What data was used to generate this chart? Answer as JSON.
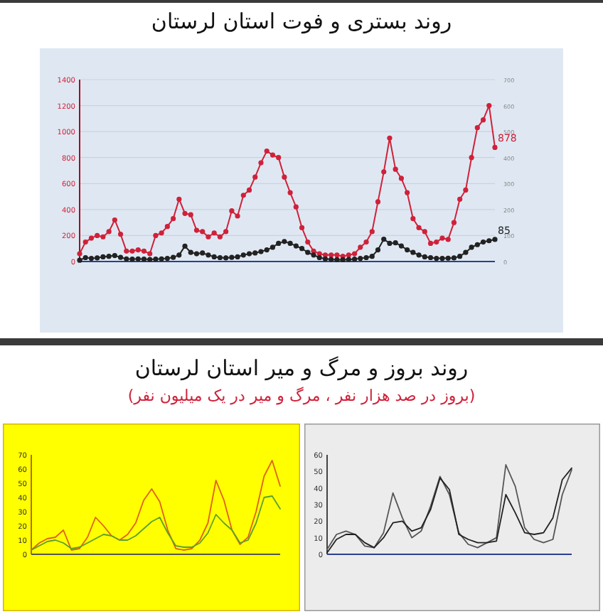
{
  "chart_data": [
    {
      "type": "line",
      "title": "روند بستری و فوت استان لرستان",
      "categories": [
        null,
        null,
        null,
        null,
        null,
        null,
        null,
        null,
        null,
        null,
        null,
        null,
        null,
        null,
        null,
        null,
        null,
        null,
        null,
        null,
        null,
        null,
        null,
        null,
        null,
        null,
        null,
        null,
        null,
        null,
        null,
        null,
        null,
        null,
        null,
        null,
        null,
        null,
        null,
        null,
        null,
        null,
        null,
        null,
        null,
        null,
        null,
        null,
        null,
        null,
        null,
        null,
        null,
        null,
        null,
        null,
        null,
        null,
        null,
        null,
        null,
        null,
        null,
        null,
        null,
        null,
        null,
        null,
        null,
        null,
        null,
        null
      ],
      "ylim": [
        0,
        1400
      ],
      "yticks": [
        0,
        200,
        400,
        600,
        800,
        1000,
        1200,
        1400
      ],
      "y2lim": [
        0,
        700
      ],
      "y2ticks": [
        0,
        100,
        200,
        300,
        400,
        500,
        600,
        700
      ],
      "grid": "y",
      "marker": "circle",
      "series": [
        {
          "color": "#d0213a",
          "values": [
            60,
            150,
            180,
            200,
            190,
            230,
            320,
            210,
            80,
            80,
            90,
            80,
            60,
            200,
            220,
            270,
            330,
            480,
            370,
            360,
            240,
            230,
            190,
            220,
            190,
            230,
            390,
            350,
            510,
            550,
            650,
            760,
            850,
            820,
            800,
            650,
            530,
            420,
            260,
            150,
            80,
            60,
            50,
            50,
            50,
            40,
            50,
            60,
            110,
            150,
            230,
            460,
            690,
            950,
            710,
            640,
            530,
            330,
            260,
            230,
            140,
            150,
            180,
            170,
            300,
            480,
            550,
            800,
            1030,
            1090,
            1200,
            878
          ],
          "value_labels": [
            null,
            null,
            null,
            null,
            null,
            null,
            null,
            null,
            null,
            null,
            null,
            null,
            null,
            null,
            null,
            null,
            null,
            null,
            null,
            null,
            null,
            null,
            null,
            null,
            null,
            null,
            null,
            null,
            null,
            null,
            null,
            null,
            null,
            null,
            null,
            null,
            null,
            null,
            null,
            null,
            null,
            null,
            null,
            null,
            null,
            null,
            null,
            null,
            null,
            null,
            null,
            null,
            null,
            null,
            null,
            null,
            null,
            null,
            null,
            null,
            null,
            null,
            null,
            null,
            null,
            null,
            null,
            null,
            null,
            null,
            null,
            "878"
          ]
        },
        {
          "color": "#222222",
          "axis": "y2",
          "values": [
            5,
            15,
            12,
            14,
            18,
            20,
            23,
            16,
            10,
            9,
            10,
            9,
            8,
            9,
            10,
            12,
            16,
            25,
            59,
            35,
            30,
            33,
            25,
            18,
            15,
            14,
            16,
            18,
            25,
            30,
            33,
            38,
            45,
            55,
            70,
            77,
            70,
            60,
            50,
            35,
            25,
            15,
            10,
            8,
            7,
            7,
            8,
            9,
            12,
            15,
            20,
            45,
            86,
            70,
            72,
            60,
            45,
            35,
            25,
            18,
            15,
            12,
            12,
            13,
            14,
            20,
            35,
            55,
            65,
            75,
            80,
            85
          ],
          "value_labels": [
            null,
            null,
            null,
            null,
            null,
            null,
            null,
            null,
            null,
            null,
            null,
            null,
            null,
            null,
            null,
            null,
            null,
            null,
            null,
            null,
            null,
            null,
            null,
            null,
            null,
            null,
            null,
            null,
            null,
            null,
            null,
            null,
            null,
            null,
            null,
            null,
            null,
            null,
            null,
            null,
            null,
            null,
            null,
            null,
            null,
            null,
            null,
            null,
            null,
            null,
            null,
            null,
            null,
            null,
            null,
            null,
            null,
            null,
            null,
            null,
            null,
            null,
            null,
            null,
            null,
            null,
            null,
            null,
            null,
            null,
            null,
            "85"
          ]
        }
      ]
    },
    {
      "type": "line",
      "title": "روند بروز و مرگ و میر استان لرستان",
      "subtitle": "(بروز در صد هزار نفر ، مرگ و میر در یک میلیون نفر)",
      "categories": [
        null,
        null,
        null,
        null,
        null,
        null,
        null,
        null,
        null,
        null,
        null,
        null,
        null,
        null,
        null,
        null,
        null,
        null,
        null,
        null,
        null,
        null,
        null,
        null,
        null,
        null,
        null,
        null,
        null,
        null,
        null,
        null
      ],
      "ylim": [
        0,
        70
      ],
      "yticks": [
        0,
        10,
        20,
        30,
        40,
        50,
        60,
        70
      ],
      "series": [
        {
          "color": "#e0601a",
          "values": [
            3,
            8,
            11,
            12,
            17,
            3,
            4,
            12,
            26,
            20,
            13,
            10,
            14,
            22,
            38,
            46,
            37,
            17,
            4,
            3,
            4,
            10,
            22,
            52,
            38,
            17,
            7,
            12,
            30,
            55,
            66,
            48
          ]
        },
        {
          "color": "#5aa02c",
          "values": [
            3,
            6,
            9,
            10,
            8,
            4,
            5,
            8,
            11,
            14,
            13,
            10,
            10,
            13,
            18,
            23,
            26,
            15,
            6,
            5,
            5,
            8,
            15,
            28,
            22,
            17,
            8,
            10,
            22,
            40,
            41,
            32
          ]
        }
      ]
    },
    {
      "type": "line",
      "categories": [
        null,
        null,
        null,
        null,
        null,
        null,
        null,
        null,
        null,
        null,
        null,
        null,
        null,
        null,
        null,
        null,
        null,
        null,
        null,
        null,
        null,
        null,
        null,
        null,
        null,
        null,
        null
      ],
      "ylim": [
        0,
        60
      ],
      "yticks": [
        0,
        10,
        20,
        30,
        40,
        50,
        60
      ],
      "series": [
        {
          "color": "#555555",
          "values": [
            3,
            12,
            14,
            12,
            5,
            4,
            13,
            37,
            22,
            10,
            14,
            29,
            47,
            36,
            13,
            6,
            4,
            7,
            10,
            54,
            41,
            16,
            9,
            7,
            9,
            36,
            51
          ]
        },
        {
          "color": "#222222",
          "values": [
            1,
            9,
            12,
            12,
            7,
            4,
            10,
            19,
            20,
            14,
            16,
            27,
            46,
            39,
            12,
            9,
            7,
            7,
            8,
            36,
            25,
            13,
            12,
            13,
            22,
            45,
            52
          ]
        }
      ]
    }
  ]
}
